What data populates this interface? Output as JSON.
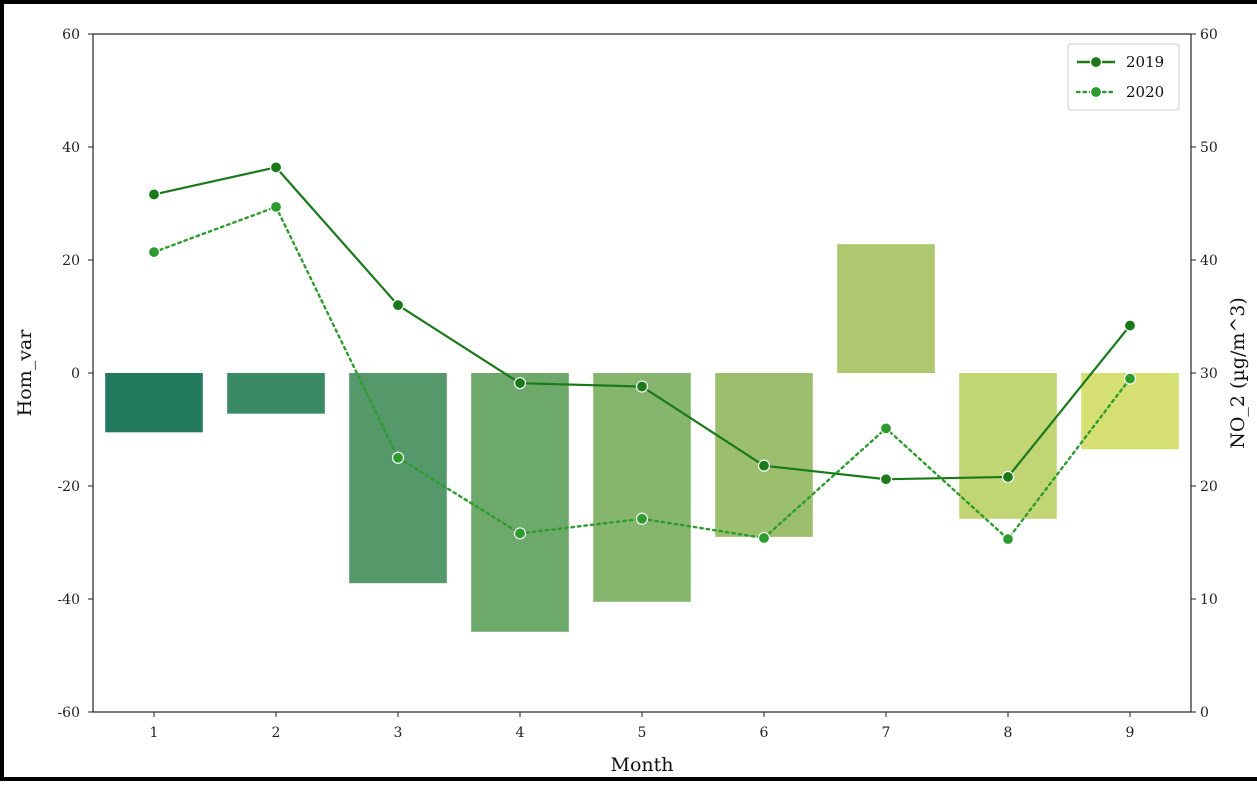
{
  "chart_data": {
    "type": "bar",
    "xlabel": "Month",
    "ylabel_left": "Hom_var",
    "ylabel_right": "NO_2 (µg/m^3)",
    "categories": [
      "1",
      "2",
      "3",
      "4",
      "5",
      "6",
      "7",
      "8",
      "9"
    ],
    "bars": {
      "name": "Hom_var",
      "values": [
        -10.5,
        -7.2,
        -37.2,
        -45.8,
        -40.5,
        -29.0,
        22.8,
        -25.8,
        -13.5
      ],
      "colors": [
        "#237a5e",
        "#3a8a65",
        "#55996a",
        "#6ea96c",
        "#86b56d",
        "#9bbf6d",
        "#adc86f",
        "#c2d574",
        "#d6df72"
      ]
    },
    "left_axis": {
      "ylim": [
        -60,
        60
      ],
      "ticks": [
        "-60",
        "-40",
        "-20",
        "0",
        "20",
        "40",
        "60"
      ]
    },
    "right_axis": {
      "ylim": [
        0,
        60
      ],
      "ticks": [
        "0",
        "10",
        "20",
        "30",
        "40",
        "50",
        "60"
      ]
    },
    "series": [
      {
        "name": "2019",
        "style": "solid",
        "color": "#1a7a1a",
        "values": [
          45.8,
          48.2,
          36.0,
          29.1,
          28.8,
          21.8,
          20.6,
          20.8,
          34.2
        ]
      },
      {
        "name": "2020",
        "style": "dotted",
        "color": "#2e9b2e",
        "values": [
          40.7,
          44.7,
          22.5,
          15.8,
          17.1,
          15.4,
          25.1,
          15.3,
          29.5
        ]
      }
    ],
    "legend": {
      "placement": "top-right"
    },
    "grid": false
  }
}
